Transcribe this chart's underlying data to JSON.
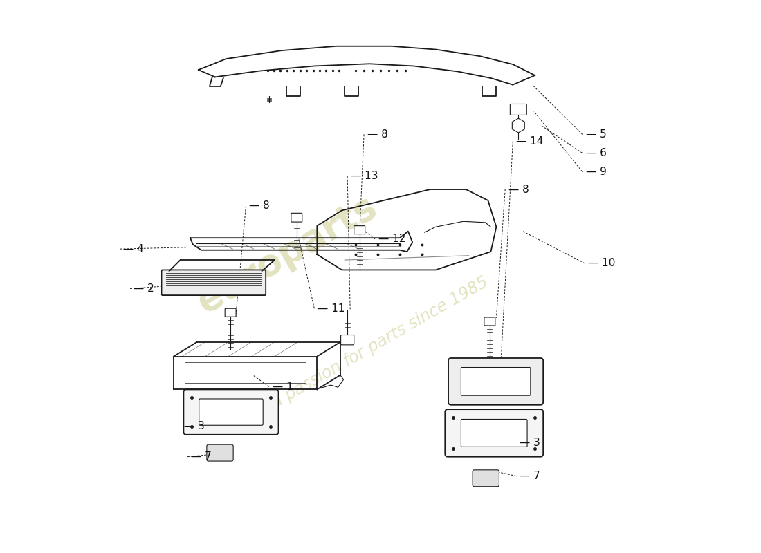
{
  "bg_color": "#ffffff",
  "line_color": "#1a1a1a",
  "watermark_color": "#d4d4a0",
  "watermark_text": "europarts",
  "watermark_subtext": "a passion for parts since 1985",
  "label_color": "#111111",
  "font_size_labels": 11,
  "font_size_watermark": 38,
  "font_size_subwatermark": 17
}
